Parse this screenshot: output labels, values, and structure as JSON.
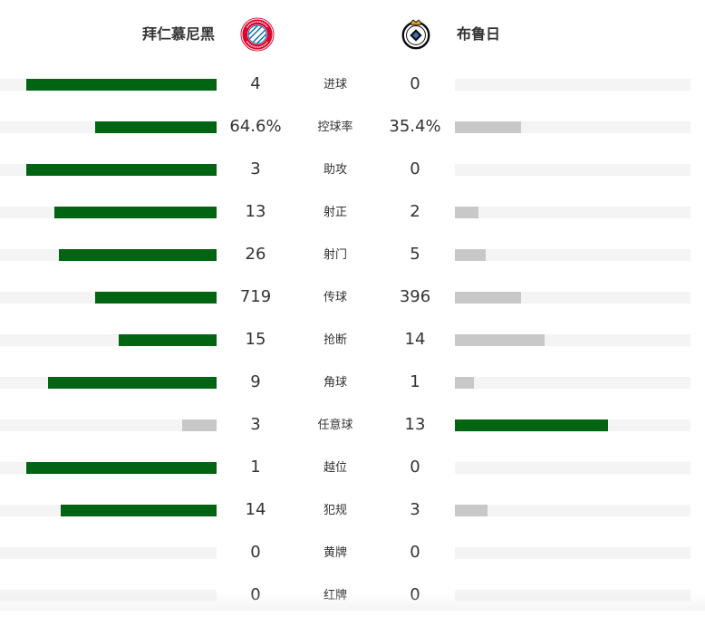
{
  "home": {
    "name": "拜仁慕尼黑",
    "logo_icon": "bayern-munich-crest-icon",
    "logo_text": "FC BAYERN MÜNCHEN",
    "logo_color": "#dc052d"
  },
  "away": {
    "name": "布鲁日",
    "logo_icon": "club-brugge-crest-icon",
    "logo_color": "#0a0a0a"
  },
  "colors": {
    "winner_bar": "#006413",
    "loser_bar": "#c8c8c8",
    "track": "#f4f4f4"
  },
  "stats": [
    {
      "label": "进球",
      "home": "4",
      "away": "0",
      "home_share": 0.88,
      "away_share": 0,
      "leader": "home"
    },
    {
      "label": "控球率",
      "home": "64.6%",
      "away": "35.4%",
      "home_share": 0.56,
      "away_share": 0.28,
      "leader": "home"
    },
    {
      "label": "助攻",
      "home": "3",
      "away": "0",
      "home_share": 0.88,
      "away_share": 0,
      "leader": "home"
    },
    {
      "label": "射正",
      "home": "13",
      "away": "2",
      "home_share": 0.75,
      "away_share": 0.1,
      "leader": "home"
    },
    {
      "label": "射门",
      "home": "26",
      "away": "5",
      "home_share": 0.73,
      "away_share": 0.13,
      "leader": "home"
    },
    {
      "label": "传球",
      "home": "719",
      "away": "396",
      "home_share": 0.56,
      "away_share": 0.28,
      "leader": "home"
    },
    {
      "label": "抢断",
      "home": "15",
      "away": "14",
      "home_share": 0.45,
      "away_share": 0.38,
      "leader": "home"
    },
    {
      "label": "角球",
      "home": "9",
      "away": "1",
      "home_share": 0.78,
      "away_share": 0.08,
      "leader": "home"
    },
    {
      "label": "任意球",
      "home": "3",
      "away": "13",
      "home_share": 0.16,
      "away_share": 0.65,
      "leader": "away"
    },
    {
      "label": "越位",
      "home": "1",
      "away": "0",
      "home_share": 0.88,
      "away_share": 0,
      "leader": "home"
    },
    {
      "label": "犯规",
      "home": "14",
      "away": "3",
      "home_share": 0.72,
      "away_share": 0.14,
      "leader": "home"
    },
    {
      "label": "黄牌",
      "home": "0",
      "away": "0",
      "home_share": 0,
      "away_share": 0,
      "leader": "none"
    },
    {
      "label": "红牌",
      "home": "0",
      "away": "0",
      "home_share": 0,
      "away_share": 0,
      "leader": "none"
    }
  ]
}
